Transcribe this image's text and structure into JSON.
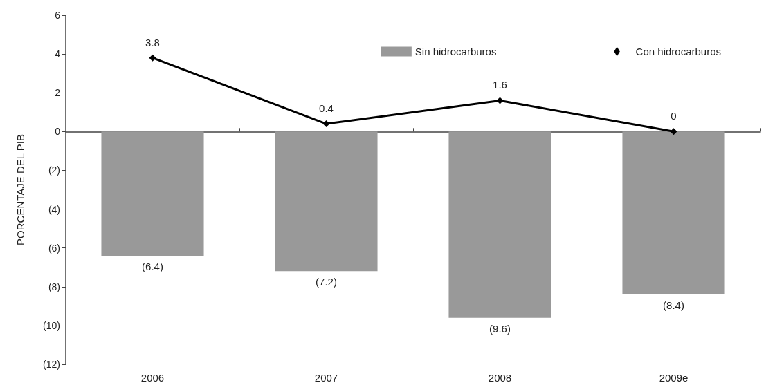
{
  "chart_data": {
    "type": "bar",
    "ylabel": "PORCENTAJE DEL PIB",
    "categories": [
      "2006",
      "2007",
      "2008",
      "2009e"
    ],
    "series": [
      {
        "name": "Sin hidrocarburos",
        "color": "#999999",
        "values": [
          -6.4,
          -7.2,
          -9.6,
          -8.4
        ],
        "value_labels": [
          "(6.4)",
          "(7.2)",
          "(9.6)",
          "(8.4)"
        ]
      },
      {
        "name": "Con hidrocarburos",
        "type": "line",
        "color": "#000000",
        "values": [
          3.8,
          0.4,
          1.6,
          0
        ],
        "value_labels": [
          "3.8",
          "0.4",
          "1.6",
          "0"
        ]
      }
    ],
    "ylim": [
      -12,
      6
    ],
    "yticks": [
      {
        "value": -12,
        "label": "(12)"
      },
      {
        "value": -10,
        "label": "(10)"
      },
      {
        "value": -8,
        "label": "(8)"
      },
      {
        "value": -6,
        "label": "(6)"
      },
      {
        "value": -4,
        "label": "(4)"
      },
      {
        "value": -2,
        "label": "(2)"
      },
      0,
      2,
      4,
      6
    ],
    "legend": "top right",
    "marker": "diamond",
    "line_style": "solid"
  }
}
